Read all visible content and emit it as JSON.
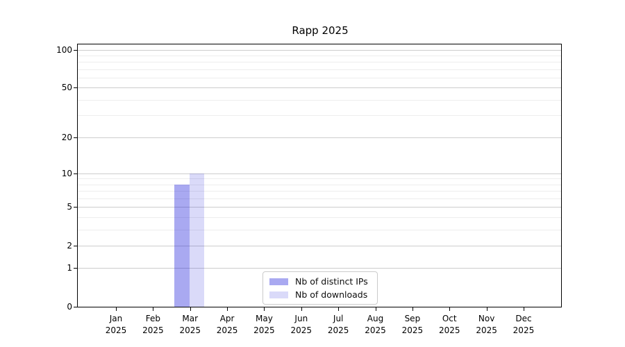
{
  "chart_data": {
    "type": "bar",
    "title": "Rapp 2025",
    "categories": [
      {
        "month": "Jan",
        "year": "2025"
      },
      {
        "month": "Feb",
        "year": "2025"
      },
      {
        "month": "Mar",
        "year": "2025"
      },
      {
        "month": "Apr",
        "year": "2025"
      },
      {
        "month": "May",
        "year": "2025"
      },
      {
        "month": "Jun",
        "year": "2025"
      },
      {
        "month": "Jul",
        "year": "2025"
      },
      {
        "month": "Aug",
        "year": "2025"
      },
      {
        "month": "Sep",
        "year": "2025"
      },
      {
        "month": "Oct",
        "year": "2025"
      },
      {
        "month": "Nov",
        "year": "2025"
      },
      {
        "month": "Dec",
        "year": "2025"
      }
    ],
    "series": [
      {
        "name": "Nb of distinct IPs",
        "values": [
          0,
          0,
          8,
          0,
          0,
          0,
          0,
          0,
          0,
          0,
          0,
          0
        ],
        "bar_color": "rgba(17,17,215,0.36)",
        "legend_color": "#a9a9f1"
      },
      {
        "name": "Nb of downloads",
        "values": [
          0,
          0,
          10,
          0,
          0,
          0,
          0,
          0,
          0,
          0,
          0,
          0
        ],
        "bar_color": "rgba(17,17,215,0.155)",
        "legend_color": "#dadaf9"
      }
    ],
    "y_axis": {
      "scale": "log1p",
      "ticks": [
        0,
        1,
        2,
        5,
        10,
        20,
        50,
        100
      ],
      "major_gridlines": [
        1,
        2,
        5,
        10,
        20,
        50,
        100
      ],
      "minor_gridlines": [
        3,
        4,
        6,
        7,
        8,
        9,
        30,
        40,
        60,
        70,
        80,
        90
      ],
      "max": 110
    },
    "x_axis": {
      "grid": false
    },
    "legend_position": "inside-bottom-center",
    "colors": {
      "major_grid": "#cdcdcd",
      "minor_grid": "#ededed",
      "spine": "#000000",
      "text": "#000000",
      "background": "#ffffff"
    }
  }
}
